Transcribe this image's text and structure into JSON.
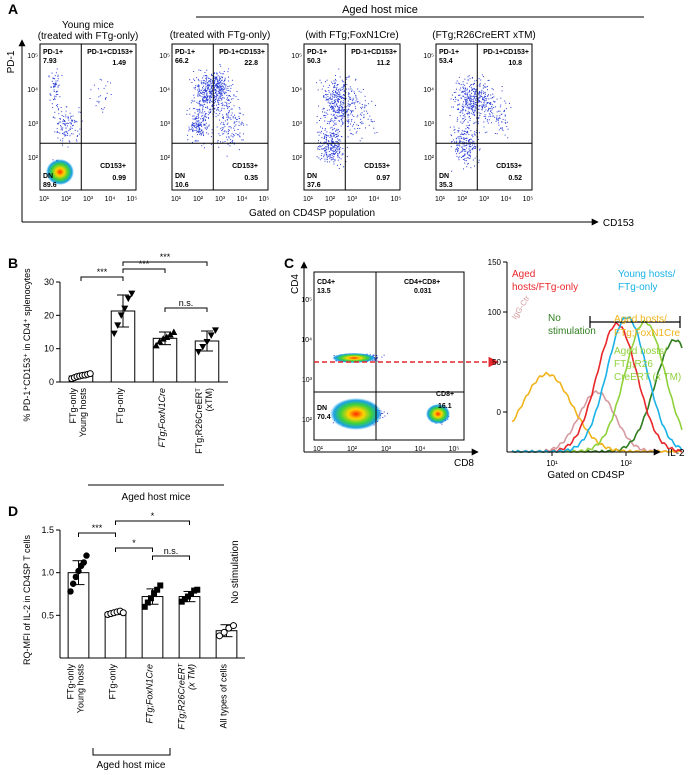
{
  "panels": {
    "A": {
      "letter": "A",
      "group_header": "Aged host mice",
      "plot_titles": [
        [
          "Young mice",
          "(treated with FTg-only)"
        ],
        [
          "(treated with FTg-only)"
        ],
        [
          "(with FTg;FoxN1Cre)"
        ],
        [
          "(FTg;R26CreERT xTM)"
        ]
      ],
      "y_axis_label": "PD-1",
      "x_axis_label": "CD153",
      "gating_label": "Gated on CD4SP population",
      "tick_labels": [
        "10¹",
        "10²",
        "10³",
        "10⁴",
        "10⁵"
      ],
      "y_tick_labels": [
        "10⁵",
        "10⁴",
        "10³",
        "10²"
      ],
      "quadrant_names": {
        "ul": "PD-1+",
        "ur": "PD-1+CD153+",
        "ll": "DN",
        "lr": "CD153+"
      },
      "plots": [
        {
          "ul": "7.93",
          "ur": "1.49",
          "ll": "89.6",
          "lr": "0.99"
        },
        {
          "ul": "66.2",
          "ur": "22.8",
          "ll": "10.6",
          "lr": "0.35"
        },
        {
          "ul": "50.3",
          "ur": "11.2",
          "ll": "37.6",
          "lr": "0.97"
        },
        {
          "ul": "53.4",
          "ur": "10.8",
          "ll": "35.3",
          "lr": "0.52"
        }
      ]
    },
    "B": {
      "letter": "B",
      "chart_ylabel": "% PD-1⁺CD153⁺ in CD4⁺ splenocytes",
      "y_ticks": [
        "0",
        "10",
        "20",
        "30"
      ],
      "categories": [
        "FTg-only Young hosts",
        "FTg-only",
        "FTg;FoxN1Cre",
        "FTg;R26CreERT (xTM)"
      ],
      "group_label": "Aged host mice",
      "significance": [
        "***",
        "***",
        "***",
        "n.s."
      ]
    },
    "C": {
      "letter": "C",
      "y_axis_label": "CD4",
      "x_axis_label": "CD8",
      "quadrants": {
        "ul_name": "CD4+",
        "ul_val": "13.5",
        "ur_name": "CD4+CD8+",
        "ur_val": "0.031",
        "ll_name": "DN",
        "ll_val": "70.4",
        "lr_name": "CD8+",
        "lr_val": "16.1"
      },
      "tick_labels": [
        "10¹",
        "10²",
        "10³",
        "10⁴",
        "10⁵"
      ],
      "y_tick_labels": [
        "10⁵",
        "10⁴",
        "10³",
        "10²"
      ],
      "hist_y_ticks": [
        "0",
        "50",
        "100",
        "150"
      ],
      "hist_x_ticks": [
        "10¹",
        "10²"
      ],
      "hist_x_label": "IL-2",
      "gating_label": "Gated on CD4SP",
      "legend": [
        {
          "text": "Aged hosts/FTg-only",
          "color": "#e8272b"
        },
        {
          "text": "Young hosts/ FTg-only",
          "color": "#1ab2e6"
        },
        {
          "text": "No stimulation",
          "color": "#2f7d1e"
        },
        {
          "text": "Aged hosts/ FTg;FoxN1Cre",
          "color": "#f0b41c"
        },
        {
          "text": "Aged hosts/ FTg;R26 CreERT (x TM)",
          "color": "#8fd13b"
        },
        {
          "text": "IgG-Ctr",
          "color": "#d69aa0"
        }
      ]
    },
    "D": {
      "letter": "D",
      "chart_ylabel": "RQ-MFI of IL-2 in CD4SP T cells",
      "y_ticks": [
        "0.5",
        "1.0",
        "1.5"
      ],
      "categories": [
        "FTg-only Young hosts",
        "FTg-only",
        "FTg;FoxN1Cre",
        "FTg;R26CreERT (x TM)",
        "All types of cells"
      ],
      "no_stim_label": "No stimulation",
      "group_label": "Aged host mice",
      "significance": [
        "***",
        "*",
        "*",
        "n.s."
      ]
    }
  },
  "chart_data": [
    {
      "type": "bar",
      "panel": "B",
      "categories": [
        "FTg-only Young hosts",
        "FTg-only",
        "FTg;FoxN1Cre",
        "FTg;R26CreERT (xTM)"
      ],
      "values": [
        1.8,
        21.3,
        13.1,
        12.3
      ],
      "errors": [
        0.5,
        4.8,
        1.9,
        3.0
      ],
      "points": [
        [
          1.0,
          1.3,
          1.6,
          1.8,
          2.0,
          2.1,
          2.3,
          2.5
        ],
        [
          14.5,
          17.0,
          20.0,
          22.0,
          25.0,
          26.5
        ],
        [
          11.0,
          12.2,
          13.0,
          13.5,
          14.2,
          15.0
        ],
        [
          9.0,
          10.5,
          12.0,
          14.0,
          15.5
        ]
      ],
      "ylabel": "% PD-1+CD153+ in CD4+ splenocytes",
      "ylim": [
        0,
        30
      ]
    },
    {
      "type": "bar",
      "panel": "D",
      "categories": [
        "FTg-only Young hosts",
        "FTg-only",
        "FTg;FoxN1Cre",
        "FTg;R26CreERT (x TM)",
        "All types of cells"
      ],
      "values": [
        1.0,
        0.53,
        0.72,
        0.72,
        0.32
      ],
      "errors": [
        0.14,
        0.02,
        0.09,
        0.06,
        0.07
      ],
      "points": [
        [
          0.78,
          0.87,
          0.95,
          1.02,
          1.08,
          1.12,
          1.2
        ],
        [
          0.51,
          0.52,
          0.53,
          0.54,
          0.55,
          0.53
        ],
        [
          0.6,
          0.65,
          0.7,
          0.76,
          0.8,
          0.85
        ],
        [
          0.66,
          0.69,
          0.72,
          0.75,
          0.79,
          0.8
        ],
        [
          0.26,
          0.3,
          0.35,
          0.38
        ]
      ],
      "ylabel": "RQ-MFI of IL-2 in CD4SP T cells",
      "ylim": [
        0,
        1.5
      ]
    }
  ]
}
